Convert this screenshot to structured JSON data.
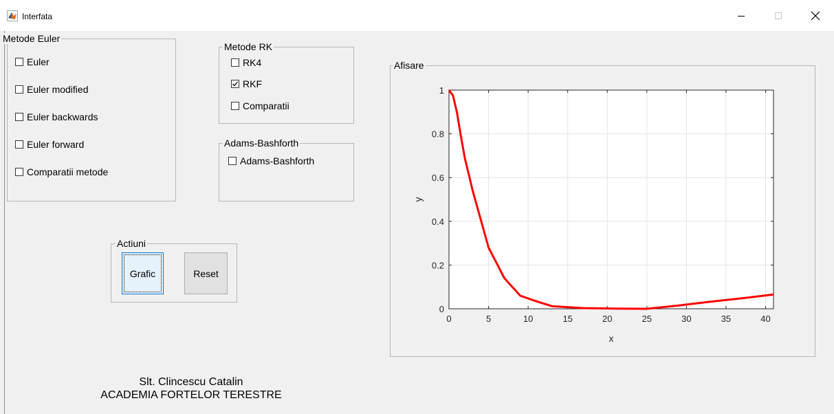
{
  "window": {
    "title": "Interfata",
    "app_icon": "matlab-icon",
    "controls": [
      "minimize-icon",
      "maximize-icon",
      "close-icon"
    ]
  },
  "panels": {
    "euler": {
      "title": "Metode Euler",
      "items": [
        {
          "label": "Euler",
          "checked": false
        },
        {
          "label": "Euler modified",
          "checked": false
        },
        {
          "label": "Euler backwards",
          "checked": false
        },
        {
          "label": "Euler forward",
          "checked": false
        },
        {
          "label": "Comparatii metode",
          "checked": false
        }
      ]
    },
    "rk": {
      "title": "Metode RK",
      "items": [
        {
          "label": "RK4",
          "checked": false
        },
        {
          "label": "RKF",
          "checked": true
        },
        {
          "label": "Comparatii",
          "checked": false
        }
      ]
    },
    "adams": {
      "title": "Adams-Bashforth",
      "items": [
        {
          "label": "Adams-Bashforth",
          "checked": false
        }
      ]
    },
    "actions": {
      "title": "Actiuni",
      "grafic_label": "Grafic",
      "reset_label": "Reset"
    },
    "display": {
      "title": "Afisare"
    }
  },
  "chart_data": {
    "type": "line",
    "title": "",
    "xlabel": "x",
    "ylabel": "y",
    "xlim": [
      0,
      41
    ],
    "ylim": [
      0,
      1
    ],
    "xticks": [
      0,
      5,
      10,
      15,
      20,
      25,
      30,
      35,
      40
    ],
    "yticks": [
      0,
      0.2,
      0.4,
      0.6,
      0.8,
      1
    ],
    "grid": true,
    "series": [
      {
        "color": "#ff0000",
        "x": [
          0,
          0.5,
          1,
          1.5,
          2,
          3,
          5,
          7,
          9,
          11,
          13,
          17,
          21,
          25,
          29,
          33,
          37,
          41
        ],
        "y": [
          1.0,
          0.975,
          0.9,
          0.79,
          0.69,
          0.54,
          0.28,
          0.14,
          0.06,
          0.035,
          0.012,
          0.003,
          0.001,
          0.0,
          0.015,
          0.032,
          0.048,
          0.065
        ]
      }
    ]
  },
  "footer": {
    "line1": "Slt. Clincescu Catalin",
    "line2": "ACADEMIA FORTELOR TERESTRE"
  }
}
